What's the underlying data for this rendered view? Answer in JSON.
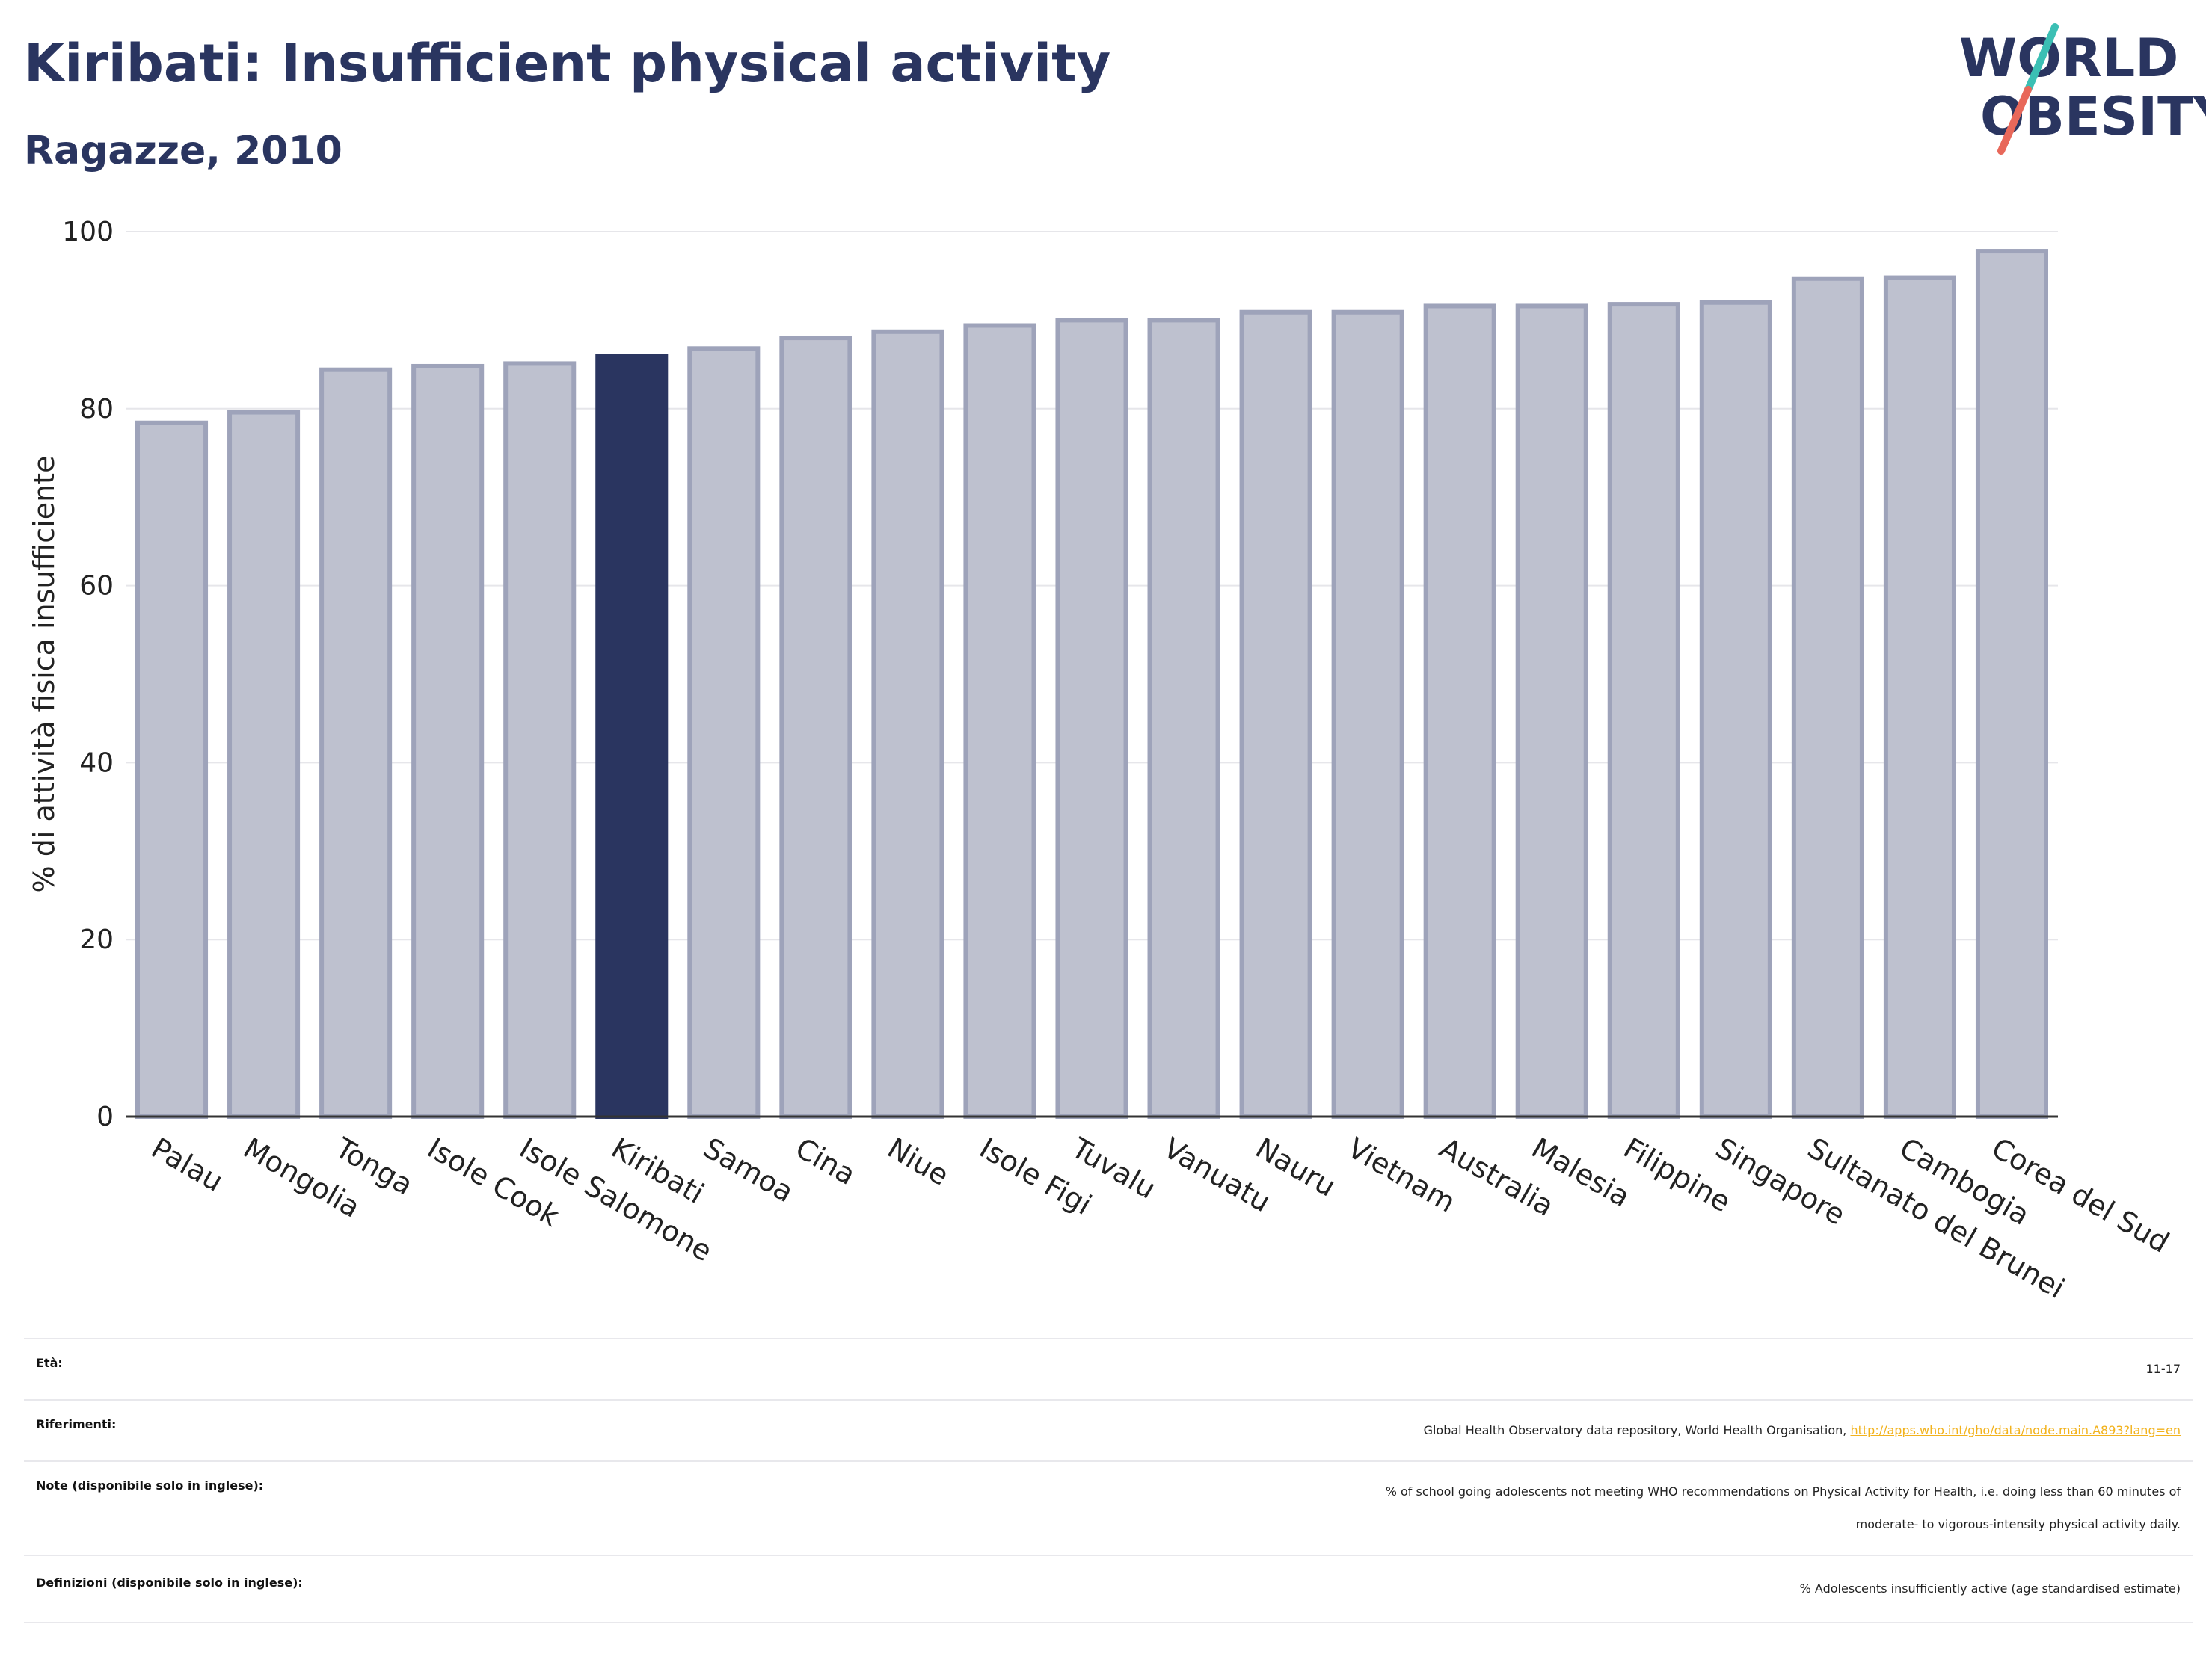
{
  "header": {
    "title": "Kiribati: Insufficient physical activity",
    "subtitle": "Ragazze, 2010"
  },
  "logo": {
    "line1": "WORLD",
    "line2": "OBESITY",
    "accent_teal": "#3bbfb4",
    "accent_red": "#e8685a",
    "color": "#2a3560"
  },
  "chart_data": {
    "type": "bar",
    "ylabel": "% di attività fisica insufficiente",
    "xlabel": "",
    "ylim": [
      0,
      100
    ],
    "yticks": [
      0,
      20,
      40,
      60,
      80,
      100
    ],
    "grid": true,
    "highlight": "Kiribati",
    "colors": {
      "bar": "#bec1cf",
      "bar_edge": "#9ea3ba",
      "highlight": "#2a3560"
    },
    "categories": [
      "Palau",
      "Mongolia",
      "Tonga",
      "Isole Cook",
      "Isole Salomone",
      "Kiribati",
      "Samoa",
      "Cina",
      "Niue",
      "Isole Figi",
      "Tuvalu",
      "Vanuatu",
      "Nauru",
      "Vietnam",
      "Australia",
      "Malesia",
      "Filippine",
      "Singapore",
      "Sultanato del Brunei",
      "Cambogia",
      "Corea del Sud"
    ],
    "values": [
      78.4,
      79.6,
      84.4,
      84.8,
      85.1,
      85.9,
      86.8,
      88.0,
      88.7,
      89.4,
      90.0,
      90.0,
      90.9,
      90.9,
      91.6,
      91.6,
      91.8,
      92.0,
      94.7,
      94.8,
      97.8
    ]
  },
  "meta": {
    "age": {
      "label": "Età:",
      "value": "11-17"
    },
    "references": {
      "label": "Riferimenti:",
      "text": "Global Health Observatory data repository, World Health Organisation, ",
      "link": "http://apps.who.int/gho/data/node.main.A893?lang=en"
    },
    "notes": {
      "label": "Note (disponibile solo in inglese):",
      "line1": "% of school going adolescents not meeting WHO recommendations on Physical Activity for Health, i.e. doing less than 60 minutes of",
      "line2": "moderate- to vigorous-intensity physical activity daily."
    },
    "definitions": {
      "label": "Definizioni (disponibile solo in inglese):",
      "value": "% Adolescents insufficiently active (age standardised estimate)"
    }
  }
}
